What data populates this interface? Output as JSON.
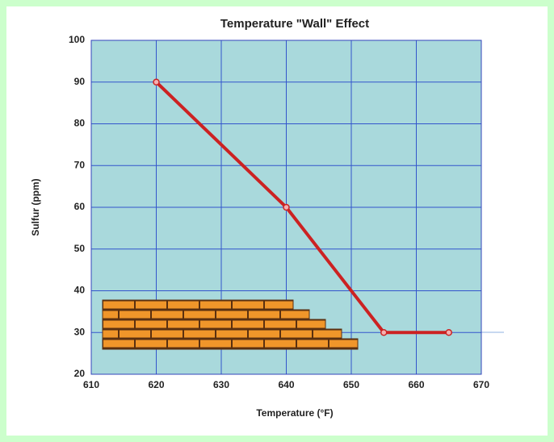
{
  "chart_data": {
    "type": "line",
    "title": "Temperature \"Wall\" Effect",
    "x_label": "Temperature  (°F)",
    "y_label": "Sulfur  (ppm)",
    "x": [
      620,
      640,
      655,
      665
    ],
    "values": [
      90,
      60,
      30,
      30
    ],
    "color": "#cc2222",
    "xlim": [
      610,
      670
    ],
    "xticks": [
      610,
      620,
      630,
      640,
      650,
      660,
      670
    ],
    "ylim": [
      20,
      100
    ],
    "yticks": [
      20,
      30,
      40,
      50,
      60,
      70,
      80,
      90,
      100
    ],
    "grid": true
  }
}
